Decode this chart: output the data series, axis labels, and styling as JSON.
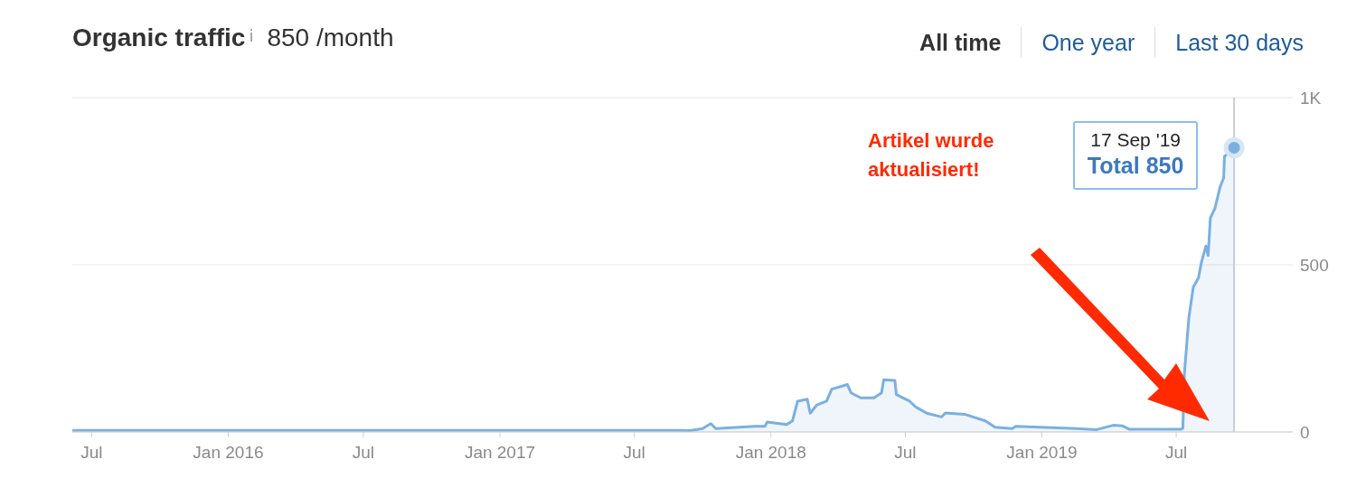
{
  "chart_data": {
    "type": "area",
    "title": "Organic traffic",
    "subtitle": "850 /month",
    "x": [
      "2015-06-05",
      "2017-09-01",
      "2017-09-14",
      "2017-10-01",
      "2017-10-12",
      "2017-10-19",
      "2017-12-10",
      "2017-12-24",
      "2017-12-27",
      "2018-01-22",
      "2018-01-30",
      "2018-02-06",
      "2018-02-19",
      "2018-02-23",
      "2018-03-04",
      "2018-03-17",
      "2018-03-24",
      "2018-04-14",
      "2018-04-19",
      "2018-05-02",
      "2018-05-20",
      "2018-05-30",
      "2018-06-02",
      "2018-06-17",
      "2018-06-19",
      "2018-07-07",
      "2018-07-15",
      "2018-07-30",
      "2018-08-19",
      "2018-08-24",
      "2018-09-19",
      "2018-10-17",
      "2018-10-30",
      "2018-11-22",
      "2018-11-27",
      "2019-02-17",
      "2019-03-16",
      "2019-04-07",
      "2019-04-20",
      "2019-04-29",
      "2019-07-07",
      "2019-07-10",
      "2019-07-12",
      "2019-07-18",
      "2019-07-24",
      "2019-07-31",
      "2019-08-04",
      "2019-08-10",
      "2019-08-13",
      "2019-08-16",
      "2019-08-22",
      "2019-08-26",
      "2019-08-29",
      "2019-09-03",
      "2019-09-04",
      "2019-09-17"
    ],
    "values": [
      5,
      5,
      4,
      10,
      25,
      10,
      17,
      17,
      30,
      22,
      33,
      92,
      98,
      56,
      81,
      92,
      128,
      142,
      117,
      102,
      102,
      117,
      156,
      154,
      112,
      92,
      75,
      56,
      45,
      57,
      53,
      33,
      14,
      10,
      17,
      10,
      7,
      20,
      18,
      8,
      8,
      11,
      173,
      341,
      433,
      461,
      508,
      556,
      528,
      640,
      668,
      704,
      732,
      760,
      824,
      850
    ],
    "color": "#7ab0e0",
    "xlim": [
      "2015-06-05",
      "2019-12-05"
    ],
    "xticks": [
      {
        "value": "2015-07",
        "label": "Jul"
      },
      {
        "value": "2016-01",
        "label": "Jan 2016"
      },
      {
        "value": "2016-07",
        "label": "Jul"
      },
      {
        "value": "2017-01",
        "label": "Jan 2017"
      },
      {
        "value": "2017-07",
        "label": "Jul"
      },
      {
        "value": "2018-01",
        "label": "Jan 2018"
      },
      {
        "value": "2018-07",
        "label": "Jul"
      },
      {
        "value": "2019-01",
        "label": "Jan 2019"
      },
      {
        "value": "2019-07",
        "label": "Jul"
      }
    ],
    "ylim": [
      0,
      1000
    ],
    "yticks": [
      0,
      500,
      {
        "value": 1000,
        "label": "1K"
      }
    ],
    "grid": "y",
    "ref_lines": [
      {
        "axis": "x",
        "value": "2019-09-17",
        "color": "#c8ccd2"
      }
    ],
    "annotations": [
      "All time",
      "One year",
      "Last 30 days",
      "Artikel wurde aktualisiert!",
      "17 Sep '19",
      {
        "text": "Total 850",
        "x": "2019-09-17",
        "y": 850
      }
    ]
  }
}
